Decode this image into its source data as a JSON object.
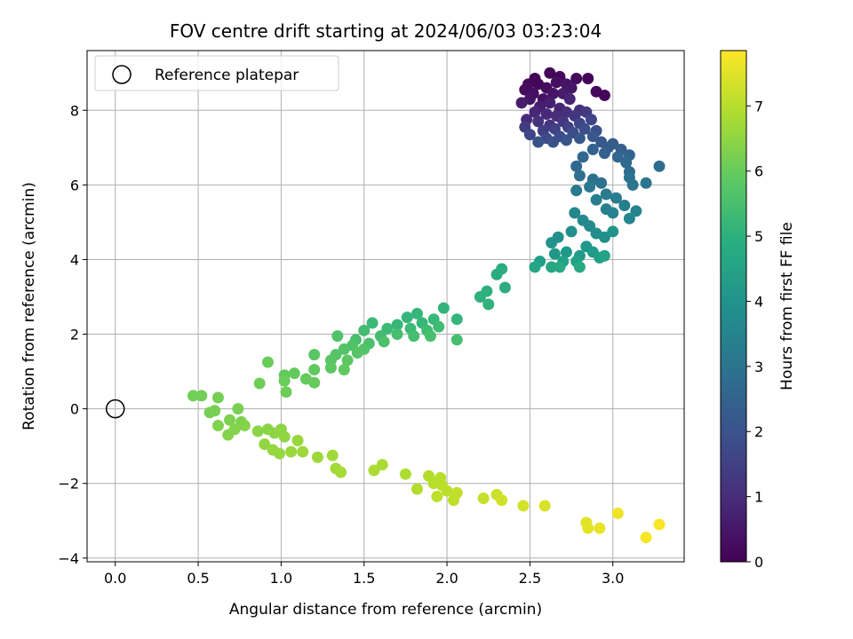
{
  "chart_data": {
    "type": "scatter",
    "title": "FOV centre drift starting at 2024/06/03 03:23:04",
    "xlabel": "Angular distance from reference (arcmin)",
    "ylabel": "Rotation from reference (arcmin)",
    "xlim": [
      -0.17,
      3.43
    ],
    "ylim": [
      -4.1,
      9.6
    ],
    "xticks": [
      0.0,
      0.5,
      1.0,
      1.5,
      2.0,
      2.5,
      3.0
    ],
    "yticks": [
      -4,
      -2,
      0,
      2,
      4,
      6,
      8
    ],
    "grid": true,
    "legend": {
      "placement": "upper-left",
      "entries": [
        "Reference platepar"
      ]
    },
    "reference_point": {
      "x": 0.0,
      "y": 0.0
    },
    "colorbar": {
      "label": "Hours from first FF file",
      "range": [
        0,
        7.85
      ],
      "ticks": [
        0,
        1,
        2,
        3,
        4,
        5,
        6,
        7
      ],
      "colormap": "viridis"
    },
    "points": [
      {
        "x": 2.53,
        "y": 8.85,
        "t": 0.05
      },
      {
        "x": 2.62,
        "y": 9.0,
        "t": 0.08
      },
      {
        "x": 2.55,
        "y": 8.7,
        "t": 0.12
      },
      {
        "x": 2.68,
        "y": 8.9,
        "t": 0.15
      },
      {
        "x": 2.49,
        "y": 8.7,
        "t": 0.18
      },
      {
        "x": 2.47,
        "y": 8.55,
        "t": 0.22
      },
      {
        "x": 2.6,
        "y": 8.6,
        "t": 0.25
      },
      {
        "x": 2.52,
        "y": 8.45,
        "t": 0.3
      },
      {
        "x": 2.66,
        "y": 8.75,
        "t": 0.32
      },
      {
        "x": 2.58,
        "y": 8.3,
        "t": 0.36
      },
      {
        "x": 2.72,
        "y": 8.7,
        "t": 0.4
      },
      {
        "x": 2.5,
        "y": 8.3,
        "t": 0.42
      },
      {
        "x": 2.64,
        "y": 8.45,
        "t": 0.45
      },
      {
        "x": 2.78,
        "y": 8.85,
        "t": 0.2
      },
      {
        "x": 2.85,
        "y": 8.85,
        "t": 0.1
      },
      {
        "x": 2.9,
        "y": 8.5,
        "t": 0.15
      },
      {
        "x": 2.95,
        "y": 8.4,
        "t": 0.12
      },
      {
        "x": 2.75,
        "y": 8.6,
        "t": 0.5
      },
      {
        "x": 2.7,
        "y": 8.45,
        "t": 0.55
      },
      {
        "x": 2.45,
        "y": 8.2,
        "t": 0.6
      },
      {
        "x": 2.56,
        "y": 8.1,
        "t": 0.65
      },
      {
        "x": 2.62,
        "y": 8.2,
        "t": 0.7
      },
      {
        "x": 2.68,
        "y": 8.05,
        "t": 0.75
      },
      {
        "x": 2.74,
        "y": 8.3,
        "t": 0.8
      },
      {
        "x": 2.53,
        "y": 7.95,
        "t": 0.85
      },
      {
        "x": 2.6,
        "y": 7.9,
        "t": 0.9
      },
      {
        "x": 2.48,
        "y": 7.75,
        "t": 0.95
      },
      {
        "x": 2.66,
        "y": 7.85,
        "t": 1.0
      },
      {
        "x": 2.72,
        "y": 7.95,
        "t": 1.05
      },
      {
        "x": 2.8,
        "y": 8.0,
        "t": 1.1
      },
      {
        "x": 2.55,
        "y": 7.7,
        "t": 1.15
      },
      {
        "x": 2.62,
        "y": 7.6,
        "t": 1.2
      },
      {
        "x": 2.7,
        "y": 7.7,
        "t": 1.25
      },
      {
        "x": 2.77,
        "y": 7.85,
        "t": 1.3
      },
      {
        "x": 2.84,
        "y": 7.95,
        "t": 1.35
      },
      {
        "x": 2.47,
        "y": 7.55,
        "t": 1.4
      },
      {
        "x": 2.58,
        "y": 7.45,
        "t": 1.45
      },
      {
        "x": 2.65,
        "y": 7.5,
        "t": 1.5
      },
      {
        "x": 2.73,
        "y": 7.55,
        "t": 1.55
      },
      {
        "x": 2.8,
        "y": 7.65,
        "t": 1.6
      },
      {
        "x": 2.87,
        "y": 7.75,
        "t": 1.65
      },
      {
        "x": 2.5,
        "y": 7.35,
        "t": 1.7
      },
      {
        "x": 2.6,
        "y": 7.25,
        "t": 1.75
      },
      {
        "x": 2.68,
        "y": 7.3,
        "t": 1.8
      },
      {
        "x": 2.76,
        "y": 7.4,
        "t": 1.85
      },
      {
        "x": 2.83,
        "y": 7.5,
        "t": 1.9
      },
      {
        "x": 2.9,
        "y": 7.45,
        "t": 1.95
      },
      {
        "x": 2.55,
        "y": 7.15,
        "t": 2.0
      },
      {
        "x": 2.64,
        "y": 7.15,
        "t": 2.0
      },
      {
        "x": 2.72,
        "y": 7.2,
        "t": 2.05
      },
      {
        "x": 2.8,
        "y": 7.25,
        "t": 2.1
      },
      {
        "x": 2.88,
        "y": 7.3,
        "t": 2.15
      },
      {
        "x": 2.93,
        "y": 7.15,
        "t": 2.2
      },
      {
        "x": 2.97,
        "y": 7.0,
        "t": 2.25
      },
      {
        "x": 3.0,
        "y": 7.1,
        "t": 2.3
      },
      {
        "x": 3.05,
        "y": 6.95,
        "t": 2.35
      },
      {
        "x": 2.95,
        "y": 6.85,
        "t": 2.4
      },
      {
        "x": 2.88,
        "y": 6.95,
        "t": 2.45
      },
      {
        "x": 3.1,
        "y": 6.8,
        "t": 2.5
      },
      {
        "x": 3.03,
        "y": 6.75,
        "t": 2.55
      },
      {
        "x": 2.82,
        "y": 6.75,
        "t": 2.6
      },
      {
        "x": 2.78,
        "y": 6.5,
        "t": 2.65
      },
      {
        "x": 3.08,
        "y": 6.6,
        "t": 2.7
      },
      {
        "x": 3.1,
        "y": 6.35,
        "t": 2.75
      },
      {
        "x": 3.28,
        "y": 6.5,
        "t": 2.8
      },
      {
        "x": 2.8,
        "y": 6.25,
        "t": 2.85
      },
      {
        "x": 2.88,
        "y": 6.15,
        "t": 2.9
      },
      {
        "x": 2.93,
        "y": 6.05,
        "t": 2.95
      },
      {
        "x": 3.1,
        "y": 6.2,
        "t": 3.0
      },
      {
        "x": 3.12,
        "y": 6.0,
        "t": 3.05
      },
      {
        "x": 3.2,
        "y": 6.05,
        "t": 3.1
      },
      {
        "x": 2.78,
        "y": 5.85,
        "t": 3.15
      },
      {
        "x": 2.86,
        "y": 5.95,
        "t": 3.2
      },
      {
        "x": 2.96,
        "y": 5.75,
        "t": 3.25
      },
      {
        "x": 3.02,
        "y": 5.65,
        "t": 3.3
      },
      {
        "x": 2.9,
        "y": 5.6,
        "t": 3.35
      },
      {
        "x": 3.07,
        "y": 5.45,
        "t": 3.4
      },
      {
        "x": 2.96,
        "y": 5.35,
        "t": 3.45
      },
      {
        "x": 3.0,
        "y": 5.25,
        "t": 3.5
      },
      {
        "x": 3.14,
        "y": 5.3,
        "t": 3.55
      },
      {
        "x": 3.1,
        "y": 5.1,
        "t": 3.6
      },
      {
        "x": 2.77,
        "y": 5.25,
        "t": 3.65
      },
      {
        "x": 2.82,
        "y": 5.05,
        "t": 3.7
      },
      {
        "x": 2.86,
        "y": 4.9,
        "t": 3.75
      },
      {
        "x": 2.9,
        "y": 4.7,
        "t": 3.8
      },
      {
        "x": 2.95,
        "y": 4.6,
        "t": 3.85
      },
      {
        "x": 2.75,
        "y": 4.75,
        "t": 3.9
      },
      {
        "x": 2.67,
        "y": 4.6,
        "t": 3.95
      },
      {
        "x": 2.63,
        "y": 4.45,
        "t": 4.0
      },
      {
        "x": 3.0,
        "y": 4.75,
        "t": 4.05
      },
      {
        "x": 2.84,
        "y": 4.35,
        "t": 4.1
      },
      {
        "x": 2.65,
        "y": 4.15,
        "t": 4.15
      },
      {
        "x": 2.72,
        "y": 4.2,
        "t": 4.2
      },
      {
        "x": 2.8,
        "y": 4.1,
        "t": 4.25
      },
      {
        "x": 2.88,
        "y": 4.2,
        "t": 4.3
      },
      {
        "x": 2.92,
        "y": 4.05,
        "t": 4.35
      },
      {
        "x": 2.56,
        "y": 3.95,
        "t": 4.4
      },
      {
        "x": 2.7,
        "y": 3.95,
        "t": 4.45
      },
      {
        "x": 2.78,
        "y": 3.95,
        "t": 4.5
      },
      {
        "x": 2.95,
        "y": 4.1,
        "t": 4.55
      },
      {
        "x": 2.53,
        "y": 3.8,
        "t": 4.6
      },
      {
        "x": 2.63,
        "y": 3.8,
        "t": 4.65
      },
      {
        "x": 2.68,
        "y": 3.8,
        "t": 4.7
      },
      {
        "x": 2.8,
        "y": 3.8,
        "t": 4.75
      },
      {
        "x": 2.33,
        "y": 3.75,
        "t": 4.8
      },
      {
        "x": 2.3,
        "y": 3.6,
        "t": 4.85
      },
      {
        "x": 2.35,
        "y": 3.25,
        "t": 4.9
      },
      {
        "x": 2.24,
        "y": 3.15,
        "t": 4.95
      },
      {
        "x": 2.2,
        "y": 3.0,
        "t": 5.0
      },
      {
        "x": 2.25,
        "y": 2.8,
        "t": 5.05
      },
      {
        "x": 1.98,
        "y": 2.7,
        "t": 5.1
      },
      {
        "x": 2.06,
        "y": 2.4,
        "t": 5.15
      },
      {
        "x": 1.82,
        "y": 2.55,
        "t": 5.2
      },
      {
        "x": 1.76,
        "y": 2.45,
        "t": 5.2
      },
      {
        "x": 1.85,
        "y": 2.3,
        "t": 5.25
      },
      {
        "x": 1.7,
        "y": 2.25,
        "t": 5.25
      },
      {
        "x": 1.92,
        "y": 2.4,
        "t": 5.3
      },
      {
        "x": 1.55,
        "y": 2.3,
        "t": 5.3
      },
      {
        "x": 1.64,
        "y": 2.15,
        "t": 5.35
      },
      {
        "x": 1.78,
        "y": 2.15,
        "t": 5.35
      },
      {
        "x": 1.88,
        "y": 2.1,
        "t": 5.4
      },
      {
        "x": 1.95,
        "y": 2.2,
        "t": 5.4
      },
      {
        "x": 1.5,
        "y": 2.1,
        "t": 5.45
      },
      {
        "x": 1.6,
        "y": 1.95,
        "t": 5.45
      },
      {
        "x": 1.7,
        "y": 2.0,
        "t": 5.5
      },
      {
        "x": 1.8,
        "y": 1.95,
        "t": 5.5
      },
      {
        "x": 1.9,
        "y": 1.95,
        "t": 5.55
      },
      {
        "x": 1.45,
        "y": 1.85,
        "t": 5.55
      },
      {
        "x": 1.53,
        "y": 1.75,
        "t": 5.6
      },
      {
        "x": 1.62,
        "y": 1.8,
        "t": 5.6
      },
      {
        "x": 1.34,
        "y": 1.95,
        "t": 5.65
      },
      {
        "x": 1.43,
        "y": 1.7,
        "t": 5.65
      },
      {
        "x": 1.5,
        "y": 1.6,
        "t": 5.7
      },
      {
        "x": 1.38,
        "y": 1.6,
        "t": 5.7
      },
      {
        "x": 1.46,
        "y": 1.5,
        "t": 5.75
      },
      {
        "x": 1.33,
        "y": 1.45,
        "t": 5.75
      },
      {
        "x": 1.2,
        "y": 1.45,
        "t": 5.8
      },
      {
        "x": 1.3,
        "y": 1.3,
        "t": 5.8
      },
      {
        "x": 1.4,
        "y": 1.3,
        "t": 5.85
      },
      {
        "x": 1.3,
        "y": 1.1,
        "t": 5.85
      },
      {
        "x": 1.38,
        "y": 1.05,
        "t": 5.9
      },
      {
        "x": 1.2,
        "y": 1.05,
        "t": 5.9
      },
      {
        "x": 1.08,
        "y": 0.95,
        "t": 5.95
      },
      {
        "x": 1.02,
        "y": 0.9,
        "t": 5.95
      },
      {
        "x": 1.15,
        "y": 0.8,
        "t": 6.0
      },
      {
        "x": 1.2,
        "y": 0.7,
        "t": 6.0
      },
      {
        "x": 1.02,
        "y": 0.75,
        "t": 6.05
      },
      {
        "x": 0.92,
        "y": 1.25,
        "t": 6.05
      },
      {
        "x": 0.87,
        "y": 0.68,
        "t": 6.1
      },
      {
        "x": 1.03,
        "y": 0.45,
        "t": 6.1
      },
      {
        "x": 2.06,
        "y": 1.85,
        "t": 5.5
      },
      {
        "x": 0.47,
        "y": 0.35,
        "t": 6.15
      },
      {
        "x": 0.52,
        "y": 0.35,
        "t": 6.15
      },
      {
        "x": 0.62,
        "y": 0.3,
        "t": 6.2
      },
      {
        "x": 0.57,
        "y": -0.1,
        "t": 6.2
      },
      {
        "x": 0.6,
        "y": -0.05,
        "t": 6.25
      },
      {
        "x": 0.74,
        "y": 0.0,
        "t": 6.25
      },
      {
        "x": 0.69,
        "y": -0.3,
        "t": 6.3
      },
      {
        "x": 0.76,
        "y": -0.35,
        "t": 6.3
      },
      {
        "x": 0.62,
        "y": -0.45,
        "t": 6.35
      },
      {
        "x": 0.72,
        "y": -0.55,
        "t": 6.35
      },
      {
        "x": 0.78,
        "y": -0.45,
        "t": 6.4
      },
      {
        "x": 0.68,
        "y": -0.7,
        "t": 6.4
      },
      {
        "x": 0.86,
        "y": -0.6,
        "t": 6.45
      },
      {
        "x": 0.92,
        "y": -0.55,
        "t": 6.45
      },
      {
        "x": 0.96,
        "y": -0.65,
        "t": 6.5
      },
      {
        "x": 1.0,
        "y": -0.55,
        "t": 6.5
      },
      {
        "x": 1.02,
        "y": -0.75,
        "t": 6.55
      },
      {
        "x": 0.9,
        "y": -0.95,
        "t": 6.55
      },
      {
        "x": 0.95,
        "y": -1.1,
        "t": 6.6
      },
      {
        "x": 0.99,
        "y": -1.2,
        "t": 6.6
      },
      {
        "x": 1.06,
        "y": -1.15,
        "t": 6.65
      },
      {
        "x": 1.1,
        "y": -0.85,
        "t": 6.65
      },
      {
        "x": 1.13,
        "y": -1.15,
        "t": 6.7
      },
      {
        "x": 1.22,
        "y": -1.3,
        "t": 6.7
      },
      {
        "x": 1.31,
        "y": -1.25,
        "t": 6.75
      },
      {
        "x": 1.33,
        "y": -1.6,
        "t": 6.75
      },
      {
        "x": 1.36,
        "y": -1.7,
        "t": 6.8
      },
      {
        "x": 1.56,
        "y": -1.65,
        "t": 6.85
      },
      {
        "x": 1.61,
        "y": -1.5,
        "t": 6.85
      },
      {
        "x": 1.75,
        "y": -1.75,
        "t": 6.9
      },
      {
        "x": 1.82,
        "y": -2.15,
        "t": 6.95
      },
      {
        "x": 1.89,
        "y": -1.8,
        "t": 6.95
      },
      {
        "x": 1.92,
        "y": -2.0,
        "t": 7.0
      },
      {
        "x": 1.96,
        "y": -1.85,
        "t": 7.0
      },
      {
        "x": 1.97,
        "y": -2.05,
        "t": 7.05
      },
      {
        "x": 2.0,
        "y": -2.2,
        "t": 7.05
      },
      {
        "x": 1.94,
        "y": -2.35,
        "t": 7.1
      },
      {
        "x": 2.04,
        "y": -2.45,
        "t": 7.1
      },
      {
        "x": 2.06,
        "y": -2.25,
        "t": 7.15
      },
      {
        "x": 2.22,
        "y": -2.4,
        "t": 7.2
      },
      {
        "x": 2.3,
        "y": -2.3,
        "t": 7.25
      },
      {
        "x": 2.33,
        "y": -2.45,
        "t": 7.3
      },
      {
        "x": 2.46,
        "y": -2.6,
        "t": 7.35
      },
      {
        "x": 2.59,
        "y": -2.6,
        "t": 7.4
      },
      {
        "x": 2.84,
        "y": -3.05,
        "t": 7.5
      },
      {
        "x": 2.85,
        "y": -3.2,
        "t": 7.55
      },
      {
        "x": 2.92,
        "y": -3.2,
        "t": 7.6
      },
      {
        "x": 3.03,
        "y": -2.8,
        "t": 7.65
      },
      {
        "x": 3.2,
        "y": -3.45,
        "t": 7.75
      },
      {
        "x": 3.28,
        "y": -3.1,
        "t": 7.8
      }
    ]
  }
}
